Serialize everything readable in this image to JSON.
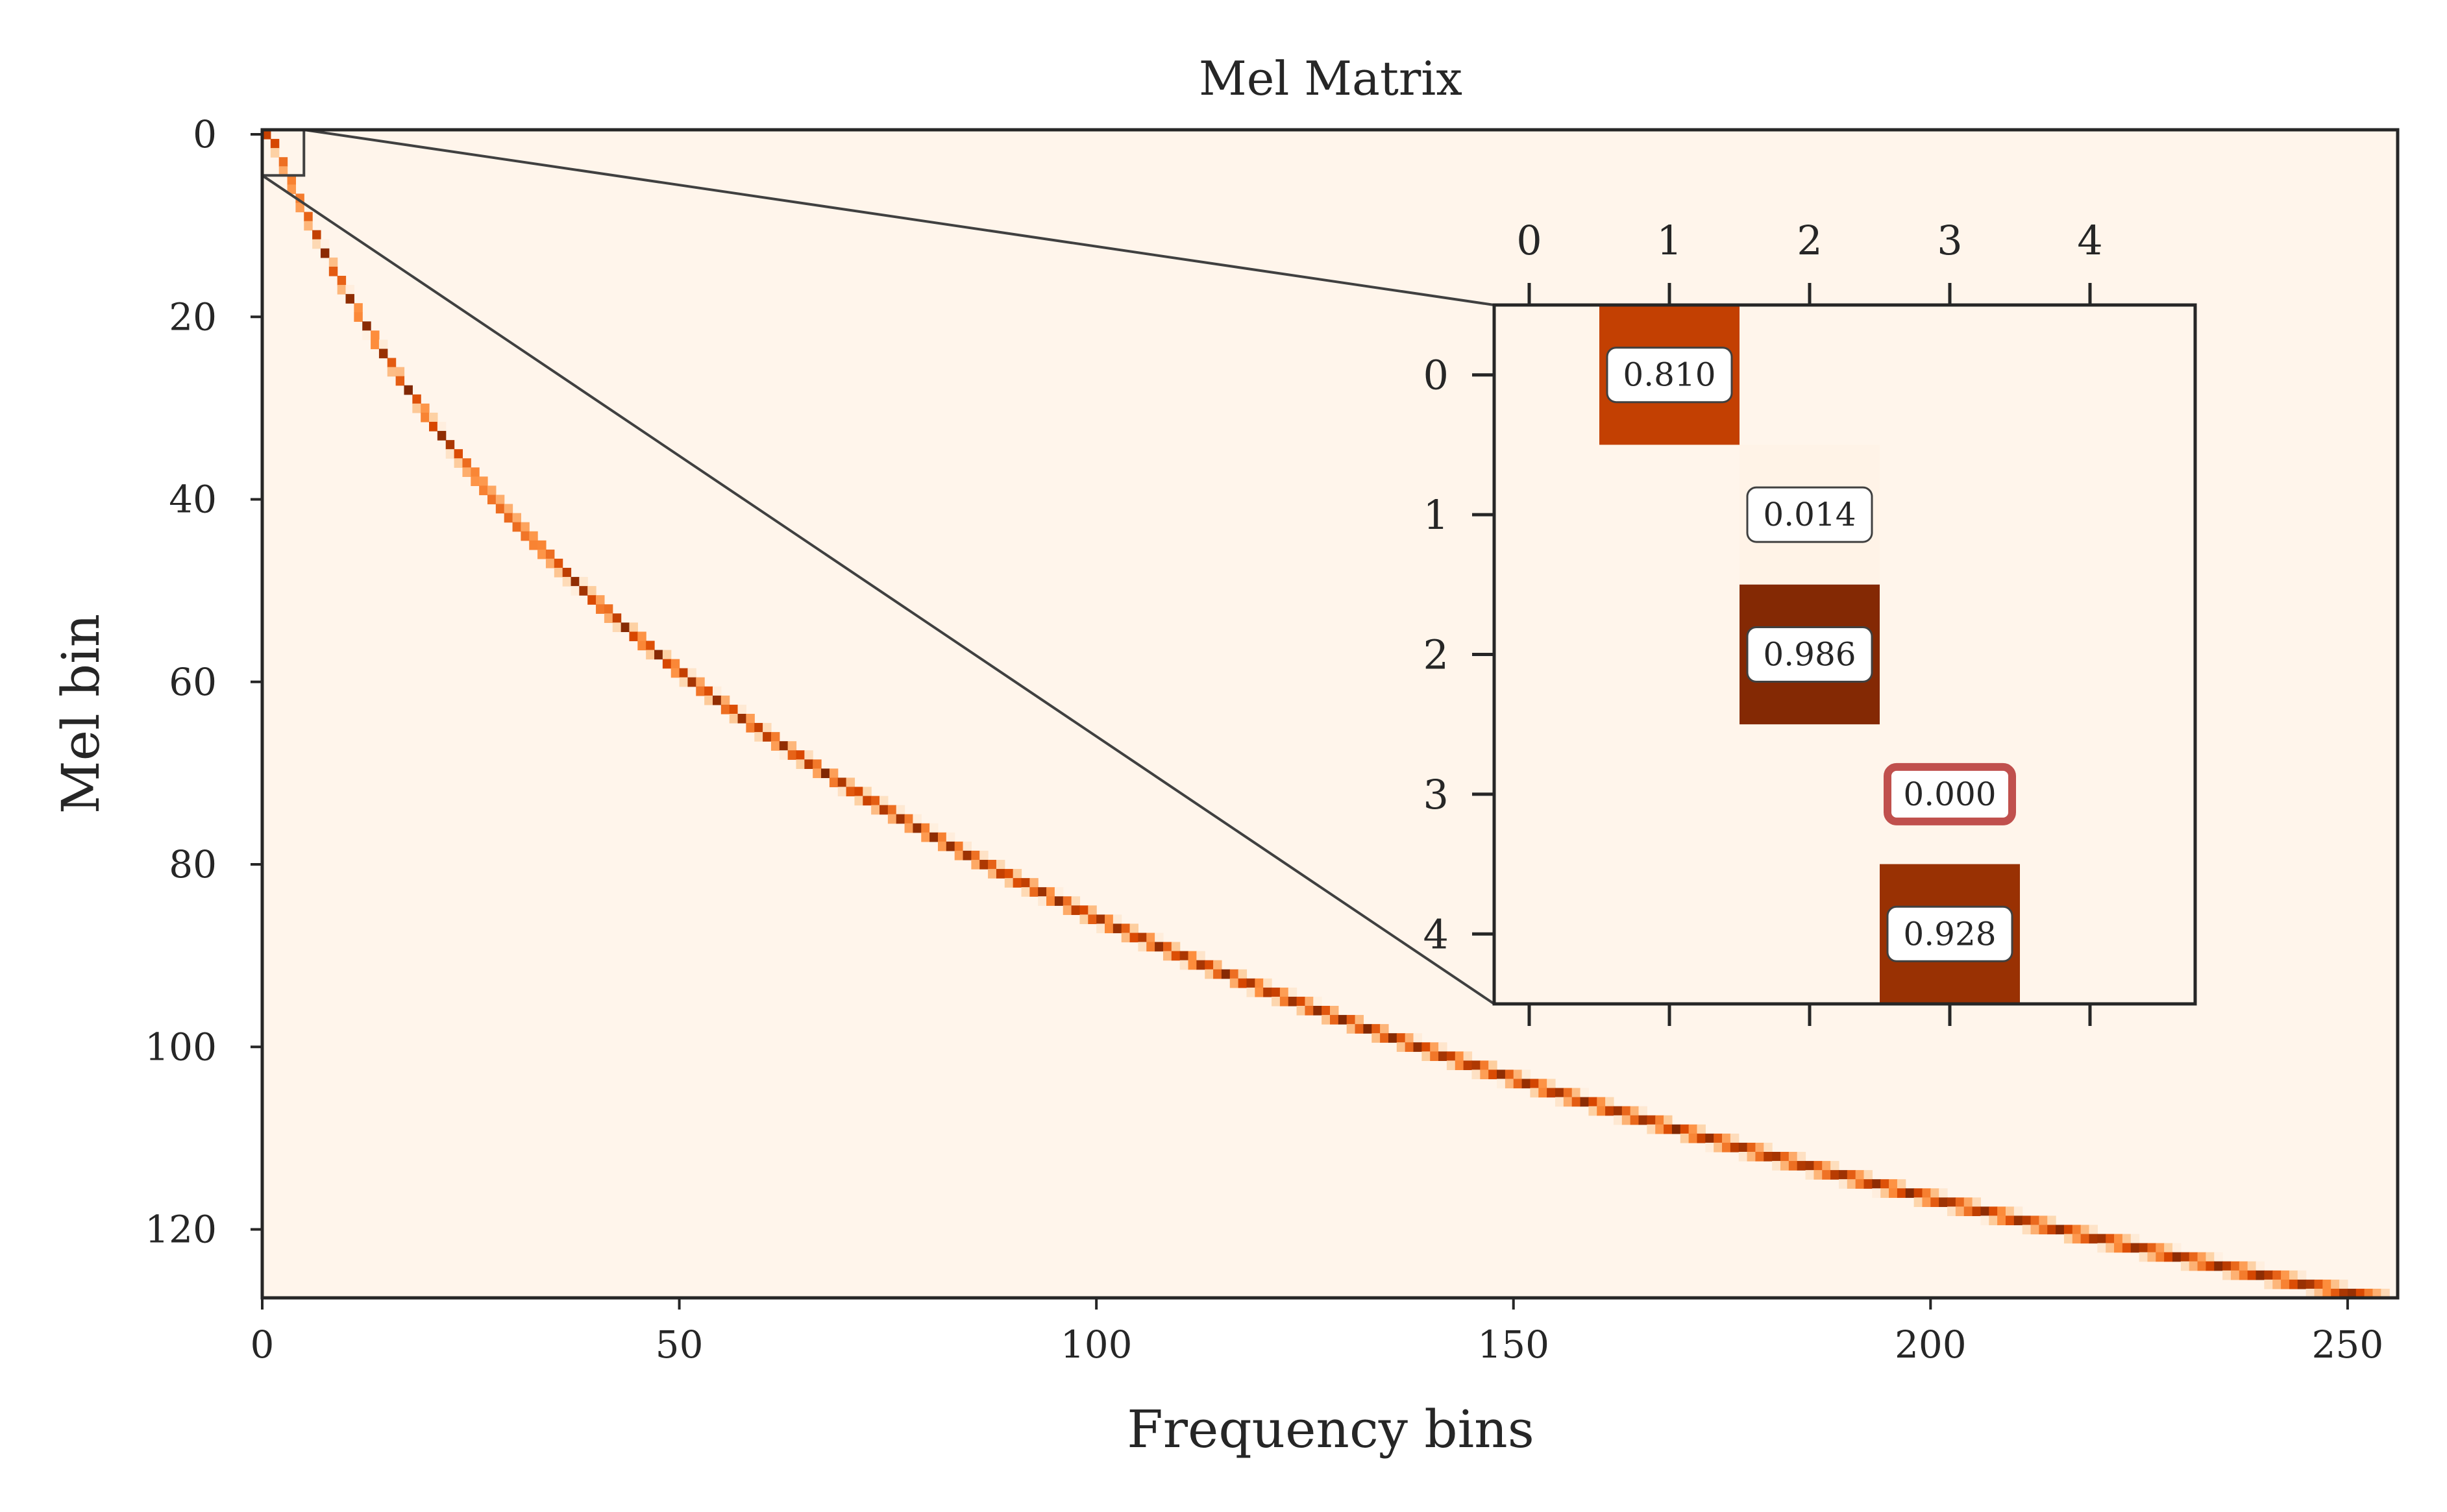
{
  "chart_data": {
    "type": "heatmap",
    "title": "Mel Matrix",
    "xlabel": "Frequency bins",
    "ylabel": "Mel bin",
    "xlim": [
      0,
      256
    ],
    "ylim": [
      128,
      0
    ],
    "x_ticks": [
      0,
      50,
      100,
      150,
      200,
      250
    ],
    "y_ticks": [
      0,
      20,
      40,
      60,
      80,
      100,
      120
    ],
    "n_mel_bins": 128,
    "n_freq_bins": 256,
    "colormap": "Oranges",
    "colormap_stops": [
      "#fff5eb",
      "#fdd0a2",
      "#fd8d3c",
      "#d94801",
      "#7f2704"
    ],
    "inset": {
      "zoom_region": {
        "x": [
          0,
          5
        ],
        "y": [
          0,
          5
        ]
      },
      "x_ticks": [
        0,
        1,
        2,
        3,
        4
      ],
      "y_ticks": [
        0,
        1,
        2,
        3,
        4
      ],
      "values": [
        [
          0.0,
          0.81,
          0.0,
          0.0,
          0.0
        ],
        [
          0.0,
          0.0,
          0.014,
          0.0,
          0.0
        ],
        [
          0.0,
          0.0,
          0.986,
          0.0,
          0.0
        ],
        [
          0.0,
          0.0,
          0.0,
          0.0,
          0.0
        ],
        [
          0.0,
          0.0,
          0.0,
          0.928,
          0.0
        ]
      ],
      "annotations": [
        {
          "row": 0,
          "col": 1,
          "text": "0.810",
          "highlight": false
        },
        {
          "row": 1,
          "col": 2,
          "text": "0.014",
          "highlight": false
        },
        {
          "row": 2,
          "col": 2,
          "text": "0.986",
          "highlight": false
        },
        {
          "row": 3,
          "col": 3,
          "text": "0.000",
          "highlight": true
        },
        {
          "row": 4,
          "col": 3,
          "text": "0.928",
          "highlight": false
        }
      ],
      "highlight_color": "#c0504d"
    }
  }
}
